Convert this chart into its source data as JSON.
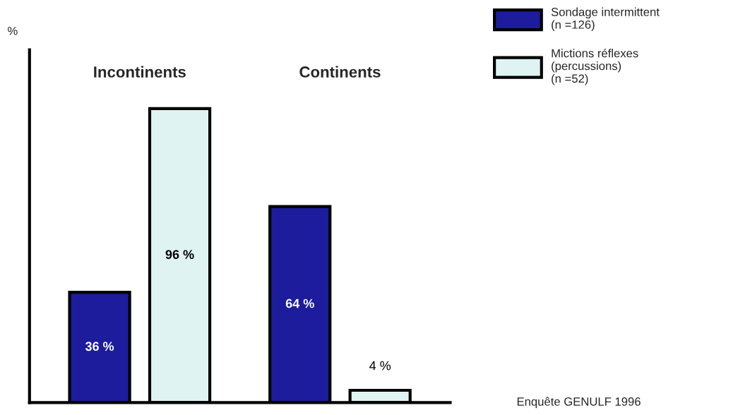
{
  "chart_data": {
    "type": "bar",
    "ylabel": "%",
    "categories": [
      "Incontinents",
      "Continents"
    ],
    "series": [
      {
        "name": "Sondage intermittent\n(n =126)",
        "color": "#1c1c9c",
        "values": [
          36,
          64
        ],
        "value_labels": [
          "36 %",
          "64 %"
        ]
      },
      {
        "name": "Mictions réflexes\n(percussions)\n(n =52)",
        "color": "#dff3f3",
        "values": [
          96,
          4
        ],
        "value_labels": [
          "96 %",
          "4 %"
        ]
      }
    ],
    "annotations": [
      "Enquête GENULF 1996"
    ],
    "legend": "right"
  }
}
